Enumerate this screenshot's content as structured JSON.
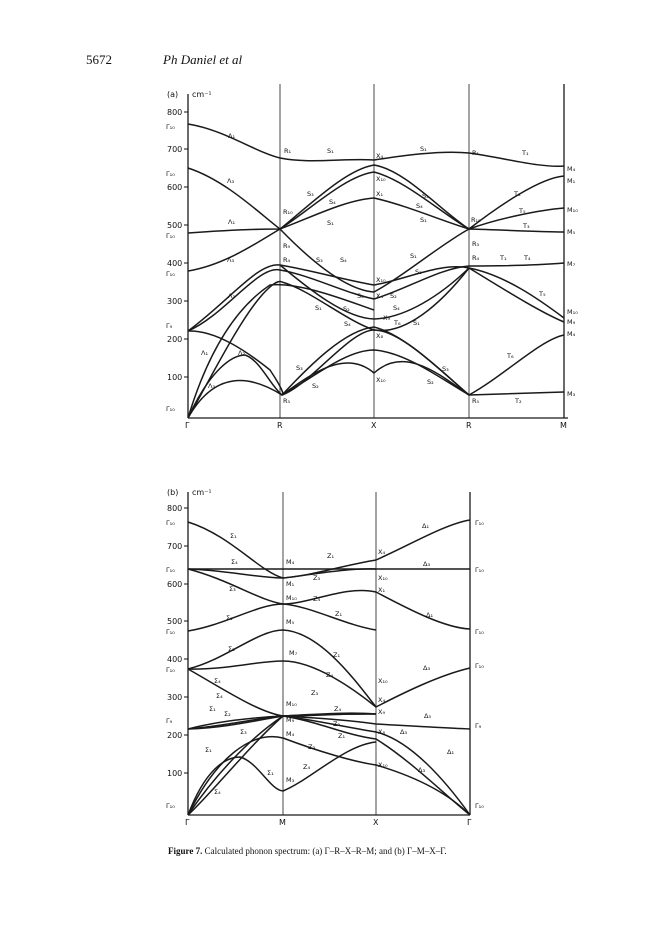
{
  "page": {
    "number": "5672",
    "running_head": "Ph Daniel et al"
  },
  "caption": {
    "label": "Figure 7.",
    "text": "Calculated phonon spectrum: (a) Γ–R–X–R–M; and (b) Γ–M–X–Γ."
  },
  "panel_a": {
    "label": "(a)",
    "unit": "cm⁻¹",
    "y_ticks": [
      "100",
      "200",
      "300",
      "400",
      "500",
      "600",
      "700",
      "800"
    ],
    "x_points": [
      "Γ",
      "R",
      "X",
      "R",
      "M"
    ],
    "left_labels": [
      "Γ₁₀",
      "Γ₁₀",
      "Γ₁₀",
      "Γ₁₀",
      "Γ₉",
      "Γ₁₀"
    ],
    "right_labels": [
      "M₄",
      "M₁",
      "M₁₀",
      "M₅",
      "M₇",
      "M₁₀",
      "M₉",
      "M₄",
      "M₃"
    ],
    "branch_labels": [
      "Λ₁",
      "Λ₃",
      "Λ₁",
      "Λ₃",
      "Λ₃",
      "Λ₁",
      "Λ₂",
      "Λ₃",
      "R₁",
      "S₁",
      "X₄",
      "S₁",
      "R₁",
      "T₁",
      "S₃",
      "S₄",
      "X₁₀",
      "X₁",
      "S₃",
      "R₁₀",
      "S₁",
      "S₄",
      "T₃",
      "T₅",
      "S₁",
      "R₁₀",
      "T₃",
      "R₉",
      "R₄",
      "S₃",
      "S₄",
      "S₁",
      "R₃",
      "R₄",
      "T₁",
      "T₄",
      "X₁₀",
      "S₃",
      "S₄",
      "X₄",
      "S₂",
      "S₁",
      "S₂",
      "X₉",
      "S₄",
      "S₁",
      "S₄",
      "X₈",
      "T₆",
      "T₅",
      "S₃",
      "S₂",
      "S₃",
      "S₂",
      "X₁₀",
      "T₆",
      "R₅",
      "R₅",
      "T₂"
    ]
  },
  "panel_b": {
    "label": "(b)",
    "unit": "cm⁻¹",
    "y_ticks": [
      "100",
      "200",
      "300",
      "400",
      "500",
      "600",
      "700",
      "800"
    ],
    "x_points": [
      "Γ",
      "M",
      "X",
      "Γ"
    ],
    "left_labels": [
      "Γ₁₀",
      "Γ₁₀",
      "Γ₁₀",
      "Γ₁₀",
      "Γ₉",
      "Γ₁₀"
    ],
    "right_labels": [
      "Γ₁₀",
      "Γ₁₀",
      "Γ₁₀",
      "Γ₁₀",
      "Γ₉",
      "Γ₁₀"
    ],
    "branch_labels": [
      "Σ₁",
      "Σ₄",
      "M₄",
      "Z₁",
      "X₄",
      "Δ₁",
      "Δ₃",
      "Σ₃",
      "M₁",
      "Z₃",
      "X₁₀",
      "M₁₀",
      "Z₄",
      "X₁",
      "Σ₁",
      "Z₁",
      "Δ₁",
      "M₅",
      "Σ₃",
      "M₇",
      "Z₁",
      "Σ₄",
      "Z₄",
      "X₁₀",
      "Δ₃",
      "Σ₄",
      "Z₃",
      "X₄",
      "M₁₀",
      "Σ₁",
      "Σ₂",
      "Z₄",
      "X₉",
      "Δ₅",
      "M₉",
      "Z₂",
      "Σ₃",
      "M₄",
      "Z₁",
      "X₈",
      "Δ₃",
      "Σ₁",
      "Z₃",
      "Δ₁",
      "Σ₁",
      "Z₄",
      "M₃",
      "X₁₀",
      "Δ₃",
      "Σ₄"
    ]
  }
}
